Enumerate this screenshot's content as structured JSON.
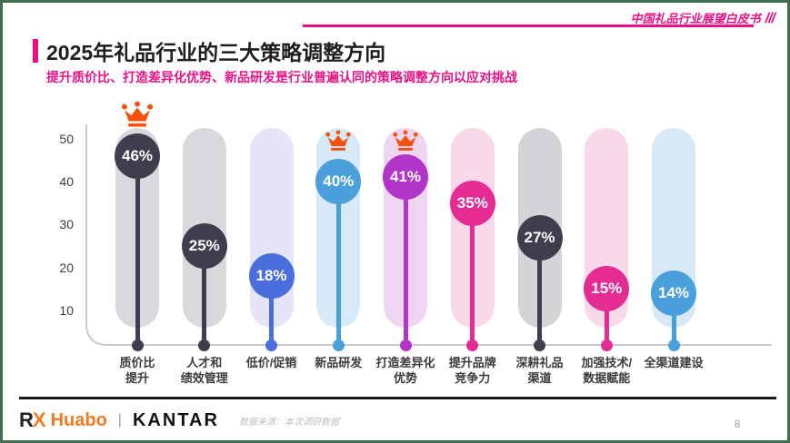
{
  "slide": {
    "watermark": "中国礼品行业展望白皮书",
    "watermark_slashes": "///",
    "title": "2025年礼品行业的三大策略调整方向",
    "subtitle": "提升质价比、打造差异化优势、新品研发是行业普遍认同的策略调整方向以应对挑战",
    "source_note": "数据来源：本次调研数据",
    "page_number": "8",
    "logos": {
      "rx_r": "R",
      "rx_x": "X",
      "huabo": "Huabo",
      "separator": "|",
      "kantar": "KANTAR"
    },
    "accent_pink": "#ec1087",
    "border_green": "#3e7050"
  },
  "chart_data": {
    "type": "bar",
    "title": "2025年礼品行业的三大策略调整方向",
    "categories": [
      "质价比提升",
      "人才和绩效管理",
      "低价/促销",
      "新品研发",
      "打造差异化优势",
      "提升品牌竞争力",
      "深耕礼品渠道",
      "加强技术/数据赋能",
      "全渠道建设"
    ],
    "category_lines": [
      [
        "质价比",
        "提升"
      ],
      [
        "人才和",
        "绩效管理"
      ],
      [
        "低价/促销"
      ],
      [
        "新品研发"
      ],
      [
        "打造差异化",
        "优势"
      ],
      [
        "提升品牌",
        "竞争力"
      ],
      [
        "深耕礼品",
        "渠道"
      ],
      [
        "加强技术/",
        "数据赋能"
      ],
      [
        "全渠道建设"
      ]
    ],
    "values": [
      46,
      25,
      18,
      40,
      41,
      35,
      27,
      15,
      14
    ],
    "labels": [
      "46%",
      "25%",
      "18%",
      "40%",
      "41%",
      "35%",
      "27%",
      "15%",
      "14%"
    ],
    "crowned": [
      true,
      false,
      false,
      true,
      true,
      false,
      false,
      false,
      false
    ],
    "colors": [
      "#3e3e4e",
      "#3e3e4e",
      "#4a6ede",
      "#4aa0da",
      "#b334c8",
      "#e52b94",
      "#3e3e4e",
      "#e52b94",
      "#4aa0da"
    ],
    "pill_colors": [
      "#d9d9dd",
      "#d9d9dd",
      "#e6e4f7",
      "#d7e9f7",
      "#eed5f2",
      "#f8d9e9",
      "#d4d4d8",
      "#f8d9e9",
      "#d7e9f7"
    ],
    "crown_color": "#f4500f",
    "xlabel": "",
    "ylabel": "",
    "yticks": [
      10,
      20,
      30,
      40,
      50
    ],
    "ylim": [
      0,
      53
    ],
    "grid": false,
    "legend": false
  }
}
